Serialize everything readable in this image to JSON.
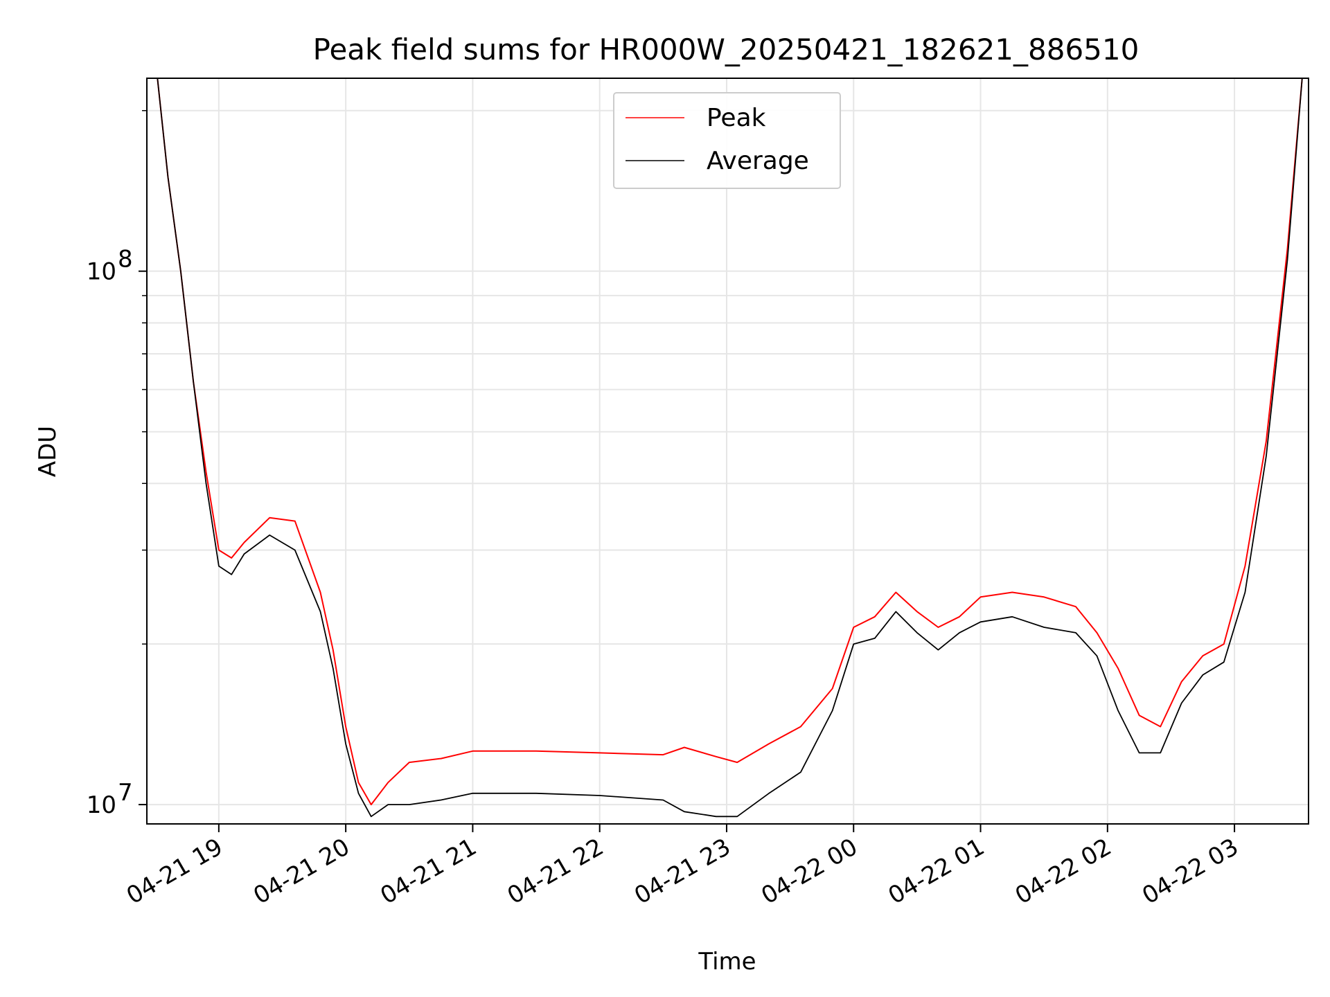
{
  "chart_data": {
    "type": "line",
    "title": "Peak field sums for HR000W_20250421_182621_886510",
    "xlabel": "Time",
    "ylabel": "ADU",
    "yscale": "log",
    "ylim": [
      9200000,
      230000000
    ],
    "xlim": [
      "2025-04-21 18:26",
      "2025-04-22 03:35"
    ],
    "x_ticks": [
      "04-21 19",
      "04-21 20",
      "04-21 21",
      "04-21 22",
      "04-21 23",
      "04-22 00",
      "04-22 01",
      "04-22 02",
      "04-22 03"
    ],
    "y_ticks": [
      {
        "label_base": "10",
        "label_exp": "7",
        "value": 10000000
      },
      {
        "label_base": "10",
        "label_exp": "8",
        "value": 100000000
      }
    ],
    "grid": true,
    "legend": {
      "position": "upper center"
    },
    "series": [
      {
        "name": "Peak",
        "color": "#ff0000",
        "x": [
          "2025-04-21 18:31",
          "2025-04-21 18:36",
          "2025-04-21 18:42",
          "2025-04-21 18:48",
          "2025-04-21 18:54",
          "2025-04-21 19:00",
          "2025-04-21 19:06",
          "2025-04-21 19:12",
          "2025-04-21 19:24",
          "2025-04-21 19:36",
          "2025-04-21 19:48",
          "2025-04-21 19:54",
          "2025-04-21 20:00",
          "2025-04-21 20:06",
          "2025-04-21 20:12",
          "2025-04-21 20:20",
          "2025-04-21 20:30",
          "2025-04-21 20:45",
          "2025-04-21 21:00",
          "2025-04-21 21:30",
          "2025-04-21 22:00",
          "2025-04-21 22:30",
          "2025-04-21 22:40",
          "2025-04-21 22:55",
          "2025-04-21 23:05",
          "2025-04-21 23:20",
          "2025-04-21 23:35",
          "2025-04-21 23:50",
          "2025-04-22 00:00",
          "2025-04-22 00:10",
          "2025-04-22 00:20",
          "2025-04-22 00:30",
          "2025-04-22 00:40",
          "2025-04-22 00:50",
          "2025-04-22 01:00",
          "2025-04-22 01:15",
          "2025-04-22 01:30",
          "2025-04-22 01:45",
          "2025-04-22 01:55",
          "2025-04-22 02:05",
          "2025-04-22 02:15",
          "2025-04-22 02:25",
          "2025-04-22 02:35",
          "2025-04-22 02:45",
          "2025-04-22 02:55",
          "2025-04-22 03:05",
          "2025-04-22 03:15",
          "2025-04-22 03:25",
          "2025-04-22 03:32"
        ],
        "y": [
          230000000,
          150000000,
          100000000,
          62000000,
          42000000,
          30000000,
          29000000,
          31000000,
          34500000,
          34000000,
          25000000,
          19500000,
          14000000,
          11000000,
          10000000,
          11000000,
          12000000,
          12200000,
          12600000,
          12600000,
          12500000,
          12400000,
          12800000,
          12300000,
          12000000,
          13000000,
          14000000,
          16500000,
          21500000,
          22500000,
          25000000,
          23000000,
          21500000,
          22500000,
          24500000,
          25000000,
          24500000,
          23500000,
          21000000,
          18000000,
          14700000,
          14000000,
          17000000,
          19000000,
          20000000,
          28000000,
          48000000,
          110000000,
          230000000
        ]
      },
      {
        "name": "Average",
        "color": "#000000",
        "x": [
          "2025-04-21 18:31",
          "2025-04-21 18:36",
          "2025-04-21 18:42",
          "2025-04-21 18:48",
          "2025-04-21 18:54",
          "2025-04-21 19:00",
          "2025-04-21 19:06",
          "2025-04-21 19:12",
          "2025-04-21 19:24",
          "2025-04-21 19:36",
          "2025-04-21 19:48",
          "2025-04-21 19:54",
          "2025-04-21 20:00",
          "2025-04-21 20:06",
          "2025-04-21 20:12",
          "2025-04-21 20:20",
          "2025-04-21 20:30",
          "2025-04-21 20:45",
          "2025-04-21 21:00",
          "2025-04-21 21:30",
          "2025-04-21 22:00",
          "2025-04-21 22:30",
          "2025-04-21 22:40",
          "2025-04-21 22:55",
          "2025-04-21 23:05",
          "2025-04-21 23:20",
          "2025-04-21 23:35",
          "2025-04-21 23:50",
          "2025-04-22 00:00",
          "2025-04-22 00:10",
          "2025-04-22 00:20",
          "2025-04-22 00:30",
          "2025-04-22 00:40",
          "2025-04-22 00:50",
          "2025-04-22 01:00",
          "2025-04-22 01:15",
          "2025-04-22 01:30",
          "2025-04-22 01:45",
          "2025-04-22 01:55",
          "2025-04-22 02:05",
          "2025-04-22 02:15",
          "2025-04-22 02:25",
          "2025-04-22 02:35",
          "2025-04-22 02:45",
          "2025-04-22 02:55",
          "2025-04-22 03:05",
          "2025-04-22 03:15",
          "2025-04-22 03:25",
          "2025-04-22 03:32"
        ],
        "y": [
          230000000,
          150000000,
          100000000,
          62000000,
          40000000,
          28000000,
          27000000,
          29500000,
          32000000,
          30000000,
          23000000,
          18000000,
          13000000,
          10500000,
          9500000,
          10000000,
          10000000,
          10200000,
          10500000,
          10500000,
          10400000,
          10200000,
          9700000,
          9500000,
          9500000,
          10500000,
          11500000,
          15000000,
          20000000,
          20500000,
          23000000,
          21000000,
          19500000,
          21000000,
          22000000,
          22500000,
          21500000,
          21000000,
          19000000,
          15000000,
          12500000,
          12500000,
          15500000,
          17500000,
          18500000,
          25000000,
          45000000,
          105000000,
          230000000
        ]
      }
    ]
  }
}
